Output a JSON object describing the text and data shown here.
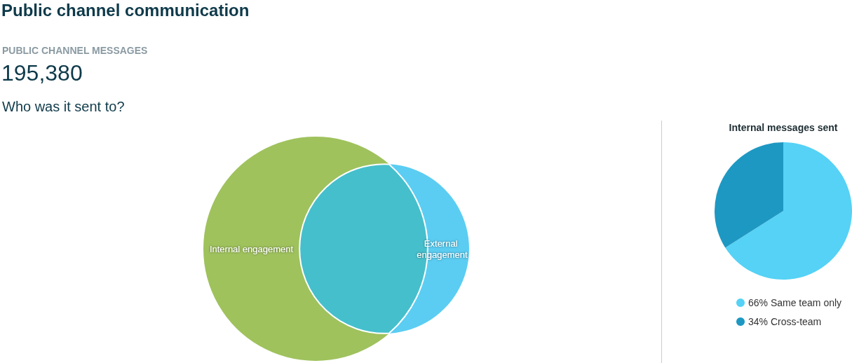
{
  "chart_data": [
    {
      "type": "other",
      "title": "Public channel communication",
      "subtitle": "PUBLIC CHANNEL MESSAGES",
      "annotations": [
        "195,380"
      ]
    },
    {
      "type": "other",
      "title": "Who was it sent to?",
      "categories": [
        "Internal engagement",
        "External engagement",
        null
      ],
      "colors": [
        "#9fc25d",
        "#5bcdf2",
        "#45bfcc"
      ]
    },
    {
      "type": "pie",
      "title": "Internal messages sent",
      "categories": [
        "Same team only",
        "Cross-team"
      ],
      "values": [
        66,
        34
      ],
      "value_labels": [
        "66%",
        "34%"
      ],
      "colors": [
        "#55d2f5",
        "#1d98c2"
      ],
      "legend": "bottom"
    }
  ]
}
